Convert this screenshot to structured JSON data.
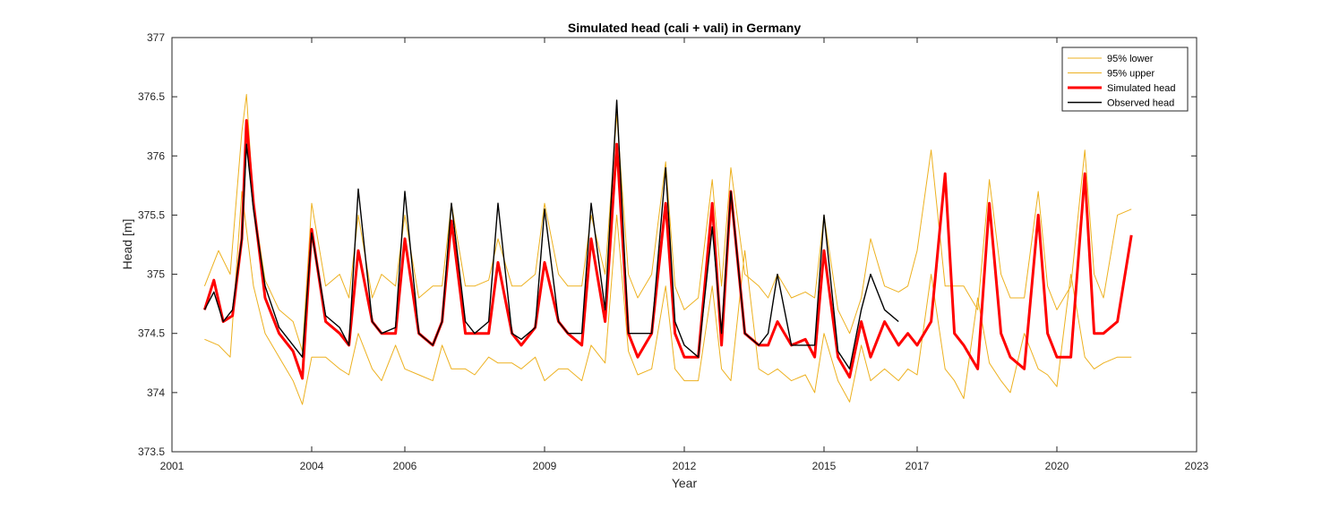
{
  "chart_data": {
    "type": "line",
    "title": "Simulated head (cali + vali) in Germany",
    "xlabel": "Year",
    "ylabel": "Head [m]",
    "xlim": [
      2001,
      2023
    ],
    "ylim": [
      373.5,
      377
    ],
    "xticks": [
      2001,
      2004,
      2006,
      2009,
      2012,
      2015,
      2017,
      2020,
      2023
    ],
    "xtick_labels": [
      "2001",
      "2004",
      "2006",
      "2009",
      "2012",
      "2015",
      "2017",
      "2020",
      "2023"
    ],
    "yticks": [
      373.5,
      374,
      374.5,
      375,
      375.5,
      376,
      376.5,
      377
    ],
    "ytick_labels": [
      "373.5",
      "374",
      "374.5",
      "375",
      "375.5",
      "376",
      "376.5",
      "377"
    ],
    "grid": false,
    "legend_position": "top-right",
    "series": [
      {
        "name": "95% lower",
        "color": "#EDB120",
        "x": [
          2001.7,
          2002.0,
          2002.25,
          2002.5,
          2002.75,
          2003.0,
          2003.3,
          2003.6,
          2003.8,
          2004.0,
          2004.3,
          2004.6,
          2004.8,
          2005.0,
          2005.3,
          2005.5,
          2005.8,
          2006.0,
          2006.3,
          2006.6,
          2006.8,
          2007.0,
          2007.3,
          2007.5,
          2007.8,
          2008.0,
          2008.3,
          2008.5,
          2008.8,
          2009.0,
          2009.3,
          2009.5,
          2009.8,
          2010.0,
          2010.3,
          2010.55,
          2010.8,
          2011.0,
          2011.3,
          2011.6,
          2011.8,
          2012.0,
          2012.3,
          2012.6,
          2012.8,
          2013.0,
          2013.3,
          2013.6,
          2013.8,
          2014.0,
          2014.3,
          2014.6,
          2014.8,
          2015.0,
          2015.3,
          2015.55,
          2015.8,
          2016.0,
          2016.3,
          2016.6,
          2016.8,
          2017.0,
          2017.3,
          2017.6,
          2017.8,
          2018.0,
          2018.3,
          2018.55,
          2018.8,
          2019.0,
          2019.3,
          2019.6,
          2019.8,
          2020.0,
          2020.3,
          2020.6,
          2020.8,
          2021.0,
          2021.3,
          2021.6
        ],
        "y": [
          374.45,
          374.4,
          374.3,
          375.7,
          374.9,
          374.5,
          374.3,
          374.1,
          373.9,
          374.3,
          374.3,
          374.2,
          374.15,
          374.5,
          374.2,
          374.1,
          374.4,
          374.2,
          374.15,
          374.1,
          374.4,
          374.2,
          374.2,
          374.15,
          374.3,
          374.25,
          374.25,
          374.2,
          374.3,
          374.1,
          374.2,
          374.2,
          374.1,
          374.4,
          374.25,
          375.5,
          374.35,
          374.15,
          374.2,
          374.9,
          374.2,
          374.1,
          374.1,
          374.9,
          374.2,
          374.1,
          375.2,
          374.2,
          374.15,
          374.2,
          374.1,
          374.15,
          374.0,
          374.5,
          374.1,
          373.92,
          374.4,
          374.1,
          374.2,
          374.1,
          374.2,
          374.15,
          375.0,
          374.2,
          374.1,
          373.95,
          374.8,
          374.25,
          374.1,
          374.0,
          374.5,
          374.2,
          374.15,
          374.05,
          375.0,
          374.3,
          374.2,
          374.25,
          374.3,
          374.3
        ]
      },
      {
        "name": "95% upper",
        "color": "#EDB120",
        "x": [
          2001.7,
          2002.0,
          2002.25,
          2002.5,
          2002.6,
          2002.75,
          2003.0,
          2003.3,
          2003.6,
          2003.8,
          2004.0,
          2004.3,
          2004.6,
          2004.8,
          2005.0,
          2005.3,
          2005.5,
          2005.8,
          2006.0,
          2006.3,
          2006.6,
          2006.8,
          2007.0,
          2007.3,
          2007.5,
          2007.8,
          2008.0,
          2008.3,
          2008.5,
          2008.8,
          2009.0,
          2009.3,
          2009.5,
          2009.8,
          2010.0,
          2010.3,
          2010.55,
          2010.8,
          2011.0,
          2011.3,
          2011.6,
          2011.8,
          2012.0,
          2012.3,
          2012.6,
          2012.8,
          2013.0,
          2013.3,
          2013.6,
          2013.8,
          2014.0,
          2014.3,
          2014.6,
          2014.8,
          2015.0,
          2015.3,
          2015.55,
          2015.8,
          2016.0,
          2016.3,
          2016.6,
          2016.8,
          2017.0,
          2017.3,
          2017.6,
          2017.8,
          2018.0,
          2018.3,
          2018.55,
          2018.8,
          2019.0,
          2019.3,
          2019.6,
          2019.8,
          2020.0,
          2020.3,
          2020.6,
          2020.8,
          2021.0,
          2021.3,
          2021.6
        ],
        "y": [
          374.9,
          375.2,
          375.0,
          376.2,
          376.52,
          375.6,
          374.95,
          374.7,
          374.6,
          374.35,
          375.6,
          374.9,
          375.0,
          374.8,
          375.5,
          374.8,
          375.0,
          374.9,
          375.5,
          374.8,
          374.9,
          374.9,
          375.6,
          374.9,
          374.9,
          374.95,
          375.3,
          374.9,
          374.9,
          375.0,
          375.6,
          375.0,
          374.9,
          374.9,
          375.5,
          375.0,
          376.35,
          375.0,
          374.8,
          375.0,
          375.95,
          374.9,
          374.7,
          374.8,
          375.8,
          374.9,
          375.9,
          375.0,
          374.9,
          374.8,
          375.0,
          374.8,
          374.85,
          374.8,
          375.5,
          374.7,
          374.5,
          374.8,
          375.3,
          374.9,
          374.85,
          374.9,
          375.2,
          376.05,
          374.9,
          374.9,
          374.9,
          374.7,
          375.8,
          375.0,
          374.8,
          374.8,
          375.7,
          374.9,
          374.7,
          374.9,
          376.05,
          375.0,
          374.8,
          375.5,
          375.55
        ]
      },
      {
        "name": "Simulated head",
        "color": "#FF0000",
        "x": [
          2001.7,
          2001.9,
          2002.1,
          2002.3,
          2002.5,
          2002.6,
          2002.75,
          2003.0,
          2003.3,
          2003.6,
          2003.8,
          2004.0,
          2004.3,
          2004.6,
          2004.8,
          2005.0,
          2005.3,
          2005.5,
          2005.8,
          2006.0,
          2006.3,
          2006.6,
          2006.8,
          2007.0,
          2007.3,
          2007.5,
          2007.8,
          2008.0,
          2008.3,
          2008.5,
          2008.8,
          2009.0,
          2009.3,
          2009.5,
          2009.8,
          2010.0,
          2010.3,
          2010.55,
          2010.8,
          2011.0,
          2011.3,
          2011.6,
          2011.8,
          2012.0,
          2012.3,
          2012.6,
          2012.8,
          2013.0,
          2013.3,
          2013.6,
          2013.8,
          2014.0,
          2014.3,
          2014.6,
          2014.8,
          2015.0,
          2015.3,
          2015.55,
          2015.8,
          2016.0,
          2016.3,
          2016.6,
          2016.8,
          2017.0,
          2017.3,
          2017.6,
          2017.8,
          2018.0,
          2018.3,
          2018.55,
          2018.8,
          2019.0,
          2019.3,
          2019.6,
          2019.8,
          2020.0,
          2020.3,
          2020.6,
          2020.8,
          2021.0,
          2021.3,
          2021.6
        ],
        "y": [
          374.7,
          374.95,
          374.6,
          374.65,
          375.3,
          376.3,
          375.6,
          374.8,
          374.5,
          374.35,
          374.12,
          375.38,
          374.6,
          374.5,
          374.4,
          375.2,
          374.6,
          374.5,
          374.5,
          375.3,
          374.5,
          374.4,
          374.6,
          375.45,
          374.5,
          374.5,
          374.5,
          375.1,
          374.5,
          374.4,
          374.55,
          375.1,
          374.6,
          374.5,
          374.4,
          375.3,
          374.6,
          376.1,
          374.5,
          374.3,
          374.5,
          375.6,
          374.5,
          374.3,
          374.3,
          375.6,
          374.4,
          375.7,
          374.5,
          374.4,
          374.4,
          374.6,
          374.4,
          374.45,
          374.3,
          375.2,
          374.3,
          374.13,
          374.6,
          374.3,
          374.6,
          374.4,
          374.5,
          374.4,
          374.6,
          375.85,
          374.5,
          374.4,
          374.2,
          375.6,
          374.5,
          374.3,
          374.2,
          375.5,
          374.5,
          374.3,
          374.3,
          375.85,
          374.5,
          374.5,
          374.6,
          375.33
        ]
      },
      {
        "name": "Observed head",
        "color": "#000000",
        "x": [
          2001.7,
          2001.9,
          2002.1,
          2002.3,
          2002.5,
          2002.6,
          2002.75,
          2003.0,
          2003.3,
          2003.6,
          2003.8,
          2004.0,
          2004.3,
          2004.6,
          2004.8,
          2005.0,
          2005.3,
          2005.5,
          2005.8,
          2006.0,
          2006.3,
          2006.6,
          2006.8,
          2007.0,
          2007.3,
          2007.5,
          2007.8,
          2008.0,
          2008.3,
          2008.5,
          2008.8,
          2009.0,
          2009.3,
          2009.5,
          2009.8,
          2010.0,
          2010.3,
          2010.55,
          2010.8,
          2011.0,
          2011.3,
          2011.6,
          2011.8,
          2012.0,
          2012.3,
          2012.6,
          2012.8,
          2013.0,
          2013.3,
          2013.6,
          2013.8,
          2014.0,
          2014.3,
          2014.6,
          2014.8,
          2015.0,
          2015.3,
          2015.55,
          2015.8,
          2016.0,
          2016.3,
          2016.6
        ],
        "y": [
          374.7,
          374.85,
          374.6,
          374.7,
          375.3,
          376.1,
          375.55,
          374.9,
          374.55,
          374.4,
          374.3,
          375.35,
          374.65,
          374.55,
          374.4,
          375.72,
          374.6,
          374.5,
          374.55,
          375.7,
          374.5,
          374.4,
          374.6,
          375.6,
          374.6,
          374.5,
          374.6,
          375.6,
          374.5,
          374.45,
          374.55,
          375.55,
          374.6,
          374.5,
          374.5,
          375.6,
          374.7,
          376.47,
          374.5,
          374.5,
          374.5,
          375.9,
          374.6,
          374.4,
          374.3,
          375.4,
          374.5,
          375.7,
          374.5,
          374.4,
          374.5,
          375.0,
          374.4,
          374.4,
          374.4,
          375.5,
          374.35,
          374.2,
          374.7,
          375.0,
          374.7,
          374.6
        ]
      }
    ]
  }
}
